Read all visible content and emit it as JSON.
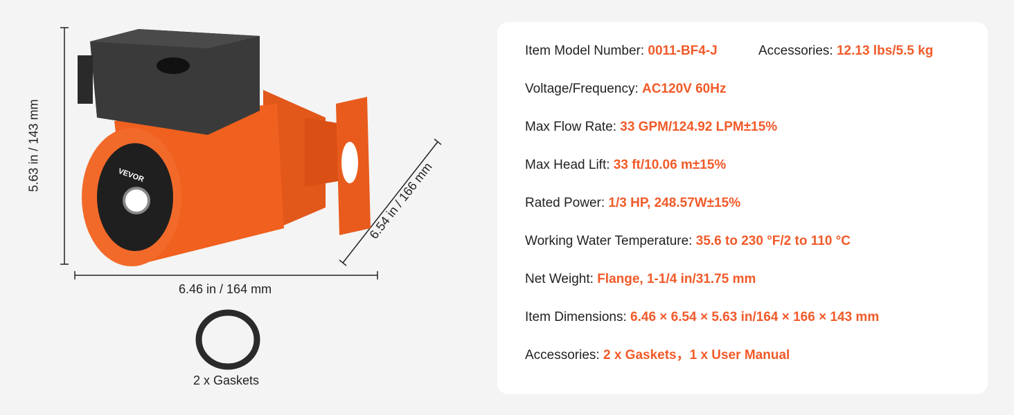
{
  "dimensions": {
    "height": "5.63 in / 143 mm",
    "width": "6.46 in / 164 mm",
    "depth": "6.54 in / 166 mm"
  },
  "gasket_label": "2 x Gaskets",
  "brand_logo": "VEVOR",
  "colors": {
    "accent": "#f15a29",
    "pump_body": "#f0601e",
    "motor_cover": "#3a3a3a"
  },
  "specs": [
    {
      "label": "Item Model Number: ",
      "value": "0011-BF4-J"
    },
    {
      "label": "Accessories: ",
      "value": "12.13 lbs/5.5 kg"
    },
    {
      "label": "Voltage/Frequency: ",
      "value": "AC120V 60Hz"
    },
    {
      "label": "Max Flow Rate: ",
      "value": "33 GPM/124.92 LPM±15%"
    },
    {
      "label": "Max Head Lift: ",
      "value": "33 ft/10.06 m±15%"
    },
    {
      "label": "Rated Power: ",
      "value": "1/3 HP, 248.57W±15%"
    },
    {
      "label": "Working Water Temperature: ",
      "value": "35.6 to 230 °F/2 to 110 °C"
    },
    {
      "label": "Net Weight: ",
      "value": "Flange, 1-1/4 in/31.75 mm"
    },
    {
      "label": "Item Dimensions: ",
      "value": "6.46 × 6.54 × 5.63 in/164 × 166 × 143 mm"
    },
    {
      "label": "Accessories: ",
      "value": "2 x Gaskets，1 x User Manual"
    }
  ]
}
